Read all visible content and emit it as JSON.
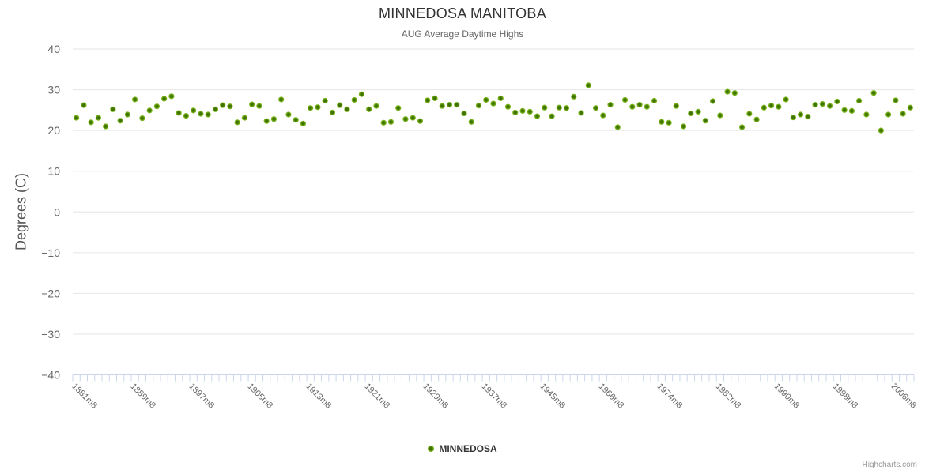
{
  "header": {
    "title": "MINNEDOSA MANITOBA",
    "subtitle": "AUG Average Daytime Highs"
  },
  "legend": {
    "label": "MINNEDOSA"
  },
  "credit": {
    "label": "Highcharts.com"
  },
  "colors": {
    "series": "#7cb71e",
    "series_core": "#3f7200",
    "grid": "#e6e6e6",
    "axis": "#ccd6eb",
    "title_text": "#333333",
    "muted_text": "#666666",
    "credit_text": "#999999"
  },
  "chart_data": {
    "type": "scatter",
    "title": "MINNEDOSA MANITOBA",
    "subtitle": "AUG Average Daytime Highs",
    "xlabel": "",
    "ylabel": "Degrees (C)",
    "ylim": [
      -40,
      40
    ],
    "ytick_values": [
      40,
      30,
      20,
      10,
      0,
      -10,
      -20,
      -30,
      -40
    ],
    "ytick_labels": [
      "40",
      "30",
      "20",
      "10",
      "0",
      "−10",
      "−20",
      "−30",
      "−40"
    ],
    "xtick_every": 8,
    "grid": true,
    "legend_position": "bottom",
    "categories": [
      "1881m8",
      "1882m8",
      "1883m8",
      "1884m8",
      "1885m8",
      "1886m8",
      "1887m8",
      "1888m8",
      "1889m8",
      "1890m8",
      "1891m8",
      "1892m8",
      "1893m8",
      "1894m8",
      "1895m8",
      "1896m8",
      "1897m8",
      "1898m8",
      "1899m8",
      "1900m8",
      "1901m8",
      "1902m8",
      "1903m8",
      "1904m8",
      "1905m8",
      "1906m8",
      "1907m8",
      "1908m8",
      "1909m8",
      "1910m8",
      "1911m8",
      "1912m8",
      "1913m8",
      "1914m8",
      "1915m8",
      "1916m8",
      "1917m8",
      "1918m8",
      "1919m8",
      "1920m8",
      "1921m8",
      "1922m8",
      "1923m8",
      "1924m8",
      "1925m8",
      "1926m8",
      "1927m8",
      "1928m8",
      "1929m8",
      "1930m8",
      "1931m8",
      "1932m8",
      "1933m8",
      "1934m8",
      "1935m8",
      "1936m8",
      "1937m8",
      "1938m8",
      "1939m8",
      "1940m8",
      "1941m8",
      "1942m8",
      "1943m8",
      "1944m8",
      "1945m8",
      "1959m8",
      "1960m8",
      "1961m8",
      "1962m8",
      "1963m8",
      "1964m8",
      "1965m8",
      "1966m8",
      "1967m8",
      "1968m8",
      "1969m8",
      "1970m8",
      "1971m8",
      "1972m8",
      "1973m8",
      "1974m8",
      "1975m8",
      "1976m8",
      "1977m8",
      "1978m8",
      "1979m8",
      "1980m8",
      "1981m8",
      "1982m8",
      "1983m8",
      "1984m8",
      "1985m8",
      "1986m8",
      "1987m8",
      "1988m8",
      "1989m8",
      "1990m8",
      "1991m8",
      "1992m8",
      "1993m8",
      "1994m8",
      "1995m8",
      "1996m8",
      "1997m8",
      "1998m8",
      "1999m8",
      "2000m8",
      "2001m8",
      "2002m8",
      "2003m8",
      "2004m8",
      "2005m8",
      "2006m8",
      "2007m8",
      "2008m8"
    ],
    "series": [
      {
        "name": "MINNEDOSA",
        "color": "#7cb71e",
        "values": [
          23.1,
          26.2,
          22.0,
          23.1,
          21.0,
          25.2,
          22.4,
          23.9,
          27.6,
          23.0,
          24.9,
          25.9,
          27.8,
          28.4,
          24.3,
          23.6,
          24.9,
          24.1,
          23.9,
          25.2,
          26.2,
          25.9,
          22.0,
          23.1,
          26.4,
          26.0,
          22.3,
          22.8,
          27.6,
          23.9,
          22.6,
          21.7,
          25.5,
          25.7,
          27.3,
          24.4,
          26.2,
          25.2,
          27.5,
          28.9,
          25.2,
          26.0,
          21.9,
          22.1,
          25.5,
          22.8,
          23.1,
          22.3,
          27.4,
          27.9,
          26.0,
          26.3,
          26.3,
          24.2,
          22.1,
          26.1,
          27.5,
          26.6,
          27.9,
          25.8,
          24.4,
          24.8,
          24.6,
          23.5,
          25.6,
          23.5,
          25.6,
          25.5,
          28.3,
          24.3,
          31.1,
          25.5,
          23.7,
          26.3,
          20.8,
          27.5,
          25.8,
          26.3,
          25.8,
          27.3,
          22.1,
          21.9,
          26.0,
          21.0,
          24.2,
          24.6,
          22.4,
          27.2,
          23.7,
          29.5,
          29.2,
          20.8,
          24.1,
          22.7,
          25.6,
          26.1,
          25.8,
          27.6,
          23.2,
          23.9,
          23.4,
          26.3,
          26.5,
          26.0,
          27.1,
          25.0,
          24.8,
          27.3,
          23.9,
          29.2,
          20.0,
          23.9,
          27.4,
          24.1,
          25.6
        ]
      }
    ]
  }
}
